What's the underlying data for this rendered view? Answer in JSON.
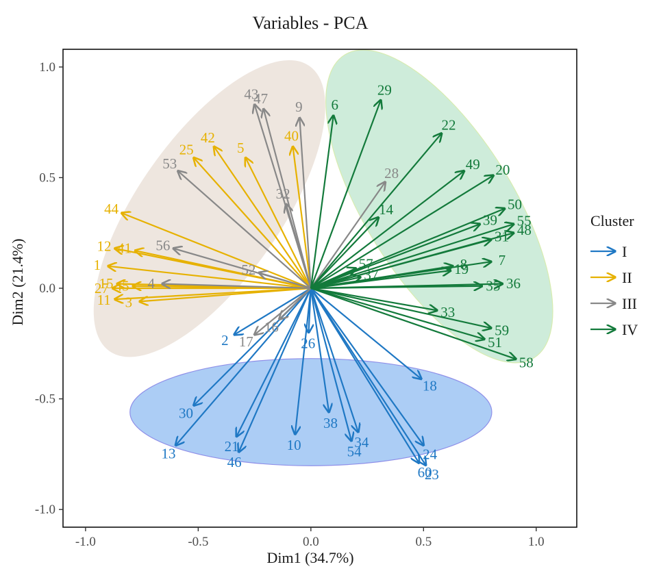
{
  "chart_data": {
    "type": "scatter",
    "title": "Variables - PCA",
    "xlabel": "Dim1 (34.7%)",
    "ylabel": "Dim2 (21.4%)",
    "xlim": [
      -1.1,
      1.18
    ],
    "ylim": [
      -1.08,
      1.08
    ],
    "xticks": [
      -1.0,
      -0.5,
      0.0,
      0.5,
      1.0
    ],
    "xtick_labels": [
      "-1.0",
      "-0.5",
      "0.0",
      "0.5",
      "1.0"
    ],
    "yticks": [
      -1.0,
      -0.5,
      0.0,
      0.5,
      1.0
    ],
    "ytick_labels": [
      "-1.0",
      "-0.5",
      "0.0",
      "0.5",
      "1.0"
    ],
    "grid": false,
    "legend": {
      "title": "Cluster",
      "placement": "right",
      "entries": [
        {
          "label": "I",
          "cluster": "I"
        },
        {
          "label": "II",
          "cluster": "II"
        },
        {
          "label": "III",
          "cluster": "III"
        },
        {
          "label": "IV",
          "cluster": "IV"
        }
      ]
    },
    "cluster_colors": {
      "I": "#1f78c4",
      "II": "#e6b100",
      "III": "#888888",
      "IV": "#137a3b"
    },
    "ellipse_fills": {
      "I": "#7fb2ef",
      "II": "#e0d2c4",
      "IV": "#a5dcbc"
    },
    "series": [
      {
        "name": "I",
        "points": [
          {
            "label": "2",
            "x": -0.34,
            "y": -0.21
          },
          {
            "label": "26",
            "x": -0.01,
            "y": -0.2
          },
          {
            "label": "30",
            "x": -0.52,
            "y": -0.53
          },
          {
            "label": "13",
            "x": -0.6,
            "y": -0.71
          },
          {
            "label": "21",
            "x": -0.33,
            "y": -0.67
          },
          {
            "label": "46",
            "x": -0.32,
            "y": -0.74
          },
          {
            "label": "10",
            "x": -0.07,
            "y": -0.66
          },
          {
            "label": "38",
            "x": 0.08,
            "y": -0.56
          },
          {
            "label": "34",
            "x": 0.21,
            "y": -0.65
          },
          {
            "label": "54",
            "x": 0.18,
            "y": -0.69
          },
          {
            "label": "18",
            "x": 0.49,
            "y": -0.41
          },
          {
            "label": "24",
            "x": 0.5,
            "y": -0.71
          },
          {
            "label": "60",
            "x": 0.48,
            "y": -0.79
          },
          {
            "label": "23",
            "x": 0.51,
            "y": -0.8
          }
        ]
      },
      {
        "name": "II",
        "points": [
          {
            "label": "42",
            "x": -0.43,
            "y": 0.64
          },
          {
            "label": "25",
            "x": -0.52,
            "y": 0.59
          },
          {
            "label": "5",
            "x": -0.29,
            "y": 0.59
          },
          {
            "label": "40",
            "x": -0.08,
            "y": 0.64
          },
          {
            "label": "44",
            "x": -0.84,
            "y": 0.34
          },
          {
            "label": "12",
            "x": -0.87,
            "y": 0.18
          },
          {
            "label": "41",
            "x": -0.78,
            "y": 0.17
          },
          {
            "label": "1",
            "x": -0.9,
            "y": 0.1
          },
          {
            "label": "15",
            "x": -0.86,
            "y": 0.02
          },
          {
            "label": "45",
            "x": -0.79,
            "y": 0.01
          },
          {
            "label": "27",
            "x": -0.88,
            "y": 0.0
          },
          {
            "label": "11",
            "x": -0.87,
            "y": -0.05
          },
          {
            "label": "3",
            "x": -0.76,
            "y": -0.06
          }
        ]
      },
      {
        "name": "III",
        "points": [
          {
            "label": "43",
            "x": -0.25,
            "y": 0.83
          },
          {
            "label": "47",
            "x": -0.21,
            "y": 0.81
          },
          {
            "label": "9",
            "x": -0.05,
            "y": 0.77
          },
          {
            "label": "53",
            "x": -0.59,
            "y": 0.53
          },
          {
            "label": "32",
            "x": -0.11,
            "y": 0.38
          },
          {
            "label": "28",
            "x": 0.33,
            "y": 0.48
          },
          {
            "label": "56",
            "x": -0.61,
            "y": 0.18
          },
          {
            "label": "52",
            "x": -0.23,
            "y": 0.07
          },
          {
            "label": "4",
            "x": -0.66,
            "y": 0.02
          },
          {
            "label": "16",
            "x": -0.14,
            "y": -0.14
          },
          {
            "label": "17",
            "x": -0.25,
            "y": -0.21
          }
        ]
      },
      {
        "name": "IV",
        "points": [
          {
            "label": "6",
            "x": 0.1,
            "y": 0.78
          },
          {
            "label": "29",
            "x": 0.31,
            "y": 0.85
          },
          {
            "label": "22",
            "x": 0.58,
            "y": 0.7
          },
          {
            "label": "49",
            "x": 0.68,
            "y": 0.53
          },
          {
            "label": "20",
            "x": 0.81,
            "y": 0.51
          },
          {
            "label": "14",
            "x": 0.3,
            "y": 0.32
          },
          {
            "label": "50",
            "x": 0.86,
            "y": 0.36
          },
          {
            "label": "39",
            "x": 0.75,
            "y": 0.29
          },
          {
            "label": "55",
            "x": 0.9,
            "y": 0.29
          },
          {
            "label": "48",
            "x": 0.9,
            "y": 0.25
          },
          {
            "label": "31",
            "x": 0.8,
            "y": 0.22
          },
          {
            "label": "57",
            "x": 0.2,
            "y": 0.09
          },
          {
            "label": "8",
            "x": 0.63,
            "y": 0.1
          },
          {
            "label": "19",
            "x": 0.62,
            "y": 0.08
          },
          {
            "label": "7",
            "x": 0.8,
            "y": 0.12
          },
          {
            "label": "37",
            "x": 0.22,
            "y": 0.05
          },
          {
            "label": "36",
            "x": 0.85,
            "y": 0.02
          },
          {
            "label": "35",
            "x": 0.76,
            "y": 0.01
          },
          {
            "label": "33",
            "x": 0.56,
            "y": -0.1
          },
          {
            "label": "59",
            "x": 0.8,
            "y": -0.18
          },
          {
            "label": "51",
            "x": 0.77,
            "y": -0.23
          },
          {
            "label": "58",
            "x": 0.91,
            "y": -0.32
          }
        ]
      }
    ]
  }
}
